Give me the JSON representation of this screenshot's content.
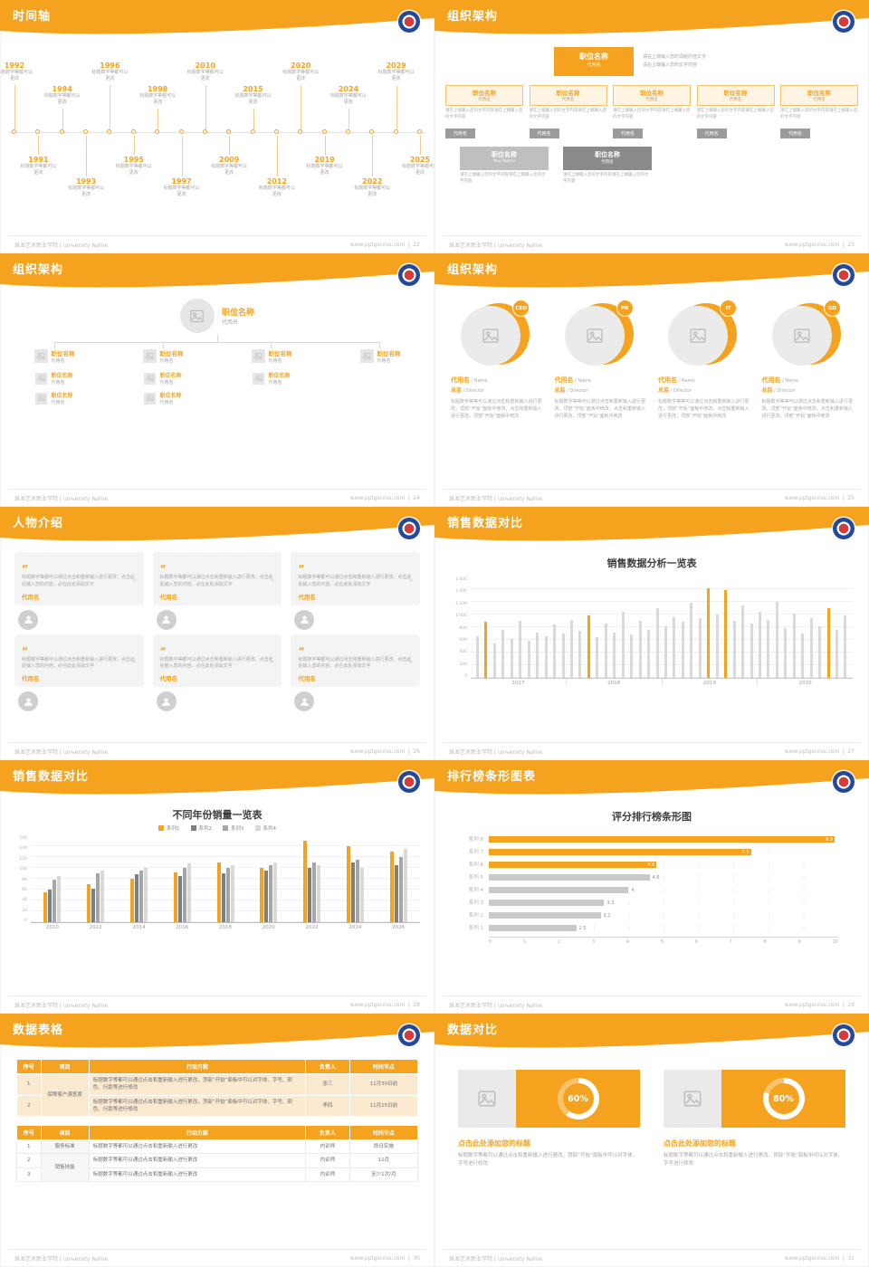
{
  "theme": {
    "orange": "#F5A31E",
    "logo_blue": "#24499B",
    "logo_red": "#D43B3B",
    "gray_text": "#999999",
    "bar_gray": "#D9D9D9"
  },
  "icons": {
    "logo": "school-emblem-icon",
    "image": "image-placeholder-icon",
    "person": "person-icon",
    "quote_open": "“",
    "quote_close": "”"
  },
  "footer": {
    "school": "珠海艺术职业学院 | university Name",
    "site": "www.pptgenius.com"
  },
  "slides": {
    "timeline": {
      "title": "时间轴",
      "page": "22",
      "top_years": [
        "1992",
        "1994",
        "1996",
        "1998",
        "2010",
        "2015",
        "2020",
        "2024",
        "2029"
      ],
      "bottom_years": [
        "1991",
        "1993",
        "1995",
        "1997",
        "2009",
        "2012",
        "2019",
        "2022",
        "2025"
      ],
      "caption": "标题数字等都可以更改"
    },
    "org_boxes": {
      "title": "组织架构",
      "page": "23",
      "main": {
        "title": "职位名称",
        "sub": "代用名"
      },
      "main_note1": "请在上端输入您的词组内容文字",
      "main_note2": "请在上端输入您的文字内容",
      "columns": [
        {
          "title": "职位名称",
          "sub": "代用名",
          "note": "请在上端输入您的文字内容请在上端输入您的文字内容",
          "tag": "代用名"
        },
        {
          "title": "职位名称",
          "sub": "代用名",
          "note": "请在上端输入您的文字内容请在上端输入您的文字内容",
          "tag": "代用名"
        },
        {
          "title": "职位名称",
          "sub": "代用名",
          "note": "请在上端输入您的文字内容请在上端输入您的文字内容",
          "tag": "代用名"
        },
        {
          "title": "职位名称",
          "sub": "代用名",
          "note": "请在上端输入您的文字内容请在上端输入您的文字内容",
          "tag": "代用名"
        },
        {
          "title": "职位名称",
          "sub": "代用名",
          "note": "请在上端输入您的文字内容请在上端输入您的文字内容",
          "tag": "代用名"
        }
      ],
      "bottom": [
        {
          "title": "职位名称",
          "sub": "Your Name",
          "note": "请在上端输入您的文字内容请在上端输入您的文字内容"
        },
        {
          "title": "职位名称",
          "sub": "代用名",
          "note": "请在上端输入您的文字内容请在上端输入您的文字内容"
        }
      ]
    },
    "org_tree": {
      "title": "组织架构",
      "page": "24",
      "root": {
        "title": "职位名称",
        "sub": "代用名"
      },
      "children": [
        {
          "title": "职位名称",
          "sub": "代用名"
        },
        {
          "title": "职位名称",
          "sub": "代用名"
        },
        {
          "title": "职位名称",
          "sub": "代用名"
        },
        {
          "title": "职位名称",
          "sub": "代用名"
        }
      ],
      "subitems": [
        [
          {
            "title": "职位名称",
            "sub": "代用名"
          },
          {
            "title": "职位名称",
            "sub": "代用名"
          }
        ],
        [
          {
            "title": "职位名称",
            "sub": "代用名"
          },
          {
            "title": "职位名称",
            "sub": "代用名"
          }
        ],
        [
          {
            "title": "职位名称",
            "sub": "代用名"
          }
        ],
        []
      ]
    },
    "org_circles": {
      "title": "组织架构",
      "page": "25",
      "members": [
        {
          "badge": "CEO",
          "name": "代用名",
          "name_en": "Name",
          "role": "总监",
          "role_en": "Director",
          "text": "标题数字等等可以通过点击和重新输入进行更改，顶部“开始”面板中修改，点击和重新输入进行更改，顶部“开始”面板中修改"
        },
        {
          "badge": "PR",
          "name": "代用名",
          "name_en": "Name",
          "role": "总监",
          "role_en": "Director",
          "text": "标题数字等等可以通过点击和重新输入进行更改，顶部“开始”面板中修改，点击和重新输入进行更改，顶部“开始”面板中修改"
        },
        {
          "badge": "IT",
          "name": "代用名",
          "name_en": "Name",
          "role": "总监",
          "role_en": "Director",
          "text": "标题数字等等可以通过点击和重新输入进行更改，顶部“开始”面板中修改，点击和重新输入进行更改，顶部“开始”面板中修改"
        },
        {
          "badge": "GD",
          "name": "代用名",
          "name_en": "Name",
          "role": "总监",
          "role_en": "Director",
          "text": "标题数字等等可以通过点击和重新输入进行更改，顶部“开始”面板中修改，点击和重新输入进行更改，顶部“开始”面板中修改"
        }
      ]
    },
    "people": {
      "title": "人物介绍",
      "page": "26",
      "cards": [
        {
          "text": "标题数字等都可以通过点击和重新输入进行更改，点击此处输入您的内容，必在此处添加文字",
          "name": "代用名"
        },
        {
          "text": "标题数字等都可以通过点击和重新输入进行更改，点击此处输入您的内容，必在此处添加文字",
          "name": "代用名"
        },
        {
          "text": "标题数字等都可以通过点击和重新输入进行更改，点击此处输入您的内容，必在此处添加文字",
          "name": "代用名"
        },
        {
          "text": "标题数字等都可以通过点击和重新输入进行更改，点击此处输入您的内容，必在此处添加文字",
          "name": "代用名"
        },
        {
          "text": "标题数字等都可以通过点击和重新输入进行更改，点击此处输入您的内容，必在此处添加文字",
          "name": "代用名"
        },
        {
          "text": "标题数字等都可以通过点击和重新输入进行更改，点击此处输入您的内容，必在此处添加文字",
          "name": "代用名"
        }
      ]
    },
    "sales1": {
      "title": "销售数据对比",
      "page": "27",
      "chart_title": "销售数据分析一览表"
    },
    "sales2": {
      "title": "销售数据对比",
      "page": "28",
      "chart_title": "不同年份销量一览表"
    },
    "rank": {
      "title": "排行榜条形图表",
      "page": "29",
      "chart_title": "评分排行榜条形图"
    },
    "tables": {
      "title": "数据表格",
      "page": "30",
      "headers": [
        "序号",
        "项目",
        "行动方案",
        "负责人",
        "时间节点"
      ],
      "table1": {
        "rows": [
          {
            "no": "1",
            "item": "保障客户满意度",
            "span": 2,
            "plan": "标题数字等都可以通过点击和重新输入进行更改，顶部“开始”面板中可以对字体、字号、颜色、行距等进行修改",
            "owner": "张三",
            "time": "11月30日前"
          },
          {
            "no": "2",
            "item": null,
            "plan": "标题数字等都可以通过点击和重新输入进行更改，顶部“开始”面板中可以对字体、字号、颜色、行距等进行修改",
            "owner": "李四",
            "time": "11月15日前"
          }
        ]
      },
      "table2": {
        "rows": [
          {
            "no": "1",
            "item": "服务标准",
            "plan": "标题数字等都可以通过点击和重新输入进行更改",
            "owner": "内训师",
            "time": "即日实施"
          },
          {
            "no": "2",
            "item": "销售技能",
            "span": 2,
            "plan": "标题数字等都可以通过点击和重新输入进行更改",
            "owner": "内训师",
            "time": "11月"
          },
          {
            "no": "3",
            "item": null,
            "plan": "标题数字等都可以通过点击和重新输入进行更改",
            "owner": "内训师",
            "time": "至少1次/月"
          }
        ]
      }
    },
    "compare": {
      "title": "数据对比",
      "page": "31",
      "panels": [
        {
          "percent": "60%",
          "value": 60,
          "heading": "点击此处添加您的标题",
          "text": "标题数字等都可以通过点击和重新输入进行更改，顶部“开始”面板中可以对字体、字号进行修改"
        },
        {
          "percent": "80%",
          "value": 80,
          "heading": "点击此处添加您的标题",
          "text": "标题数字等都可以通过点击和重新输入进行更改，顶部“开始”面板中可以对字体、字号进行修改"
        }
      ]
    }
  },
  "chart_data": [
    {
      "type": "bar",
      "title": "销售数据分析一览表",
      "x_groups": [
        "2017",
        "2018",
        "2019",
        "2020"
      ],
      "values": [
        660,
        880,
        540,
        760,
        620,
        900,
        580,
        720,
        660,
        840,
        700,
        920,
        750,
        980,
        640,
        860,
        720,
        1040,
        680,
        900,
        760,
        1100,
        820,
        960,
        880,
        1180,
        940,
        1420,
        1000,
        1380,
        900,
        1150,
        860,
        1050,
        920,
        1200,
        780,
        1020,
        700,
        950,
        820,
        1100,
        760,
        980
      ],
      "highlight_indices": [
        1,
        13,
        27,
        29,
        41
      ],
      "highlight_color": "#F5A31E",
      "bar_color": "#D9D9D9",
      "ylim": [
        0,
        1600
      ],
      "yticks": [
        "1,600",
        "1,400",
        "1,200",
        "1,000",
        "800",
        "600",
        "400",
        "200",
        "0"
      ]
    },
    {
      "type": "bar",
      "title": "不同年份销量一览表",
      "categories": [
        "2010",
        "2012",
        "2014",
        "2016",
        "2018",
        "2020",
        "2022",
        "2024",
        "2026"
      ],
      "series": [
        {
          "name": "系列1",
          "color": "#F5A31E",
          "values": [
            55,
            70,
            80,
            92,
            110,
            100,
            150,
            140,
            130
          ]
        },
        {
          "name": "系列2",
          "color": "#7F7F7F",
          "values": [
            60,
            62,
            88,
            85,
            90,
            95,
            100,
            110,
            105
          ]
        },
        {
          "name": "系列3",
          "color": "#A6A6A6",
          "values": [
            78,
            90,
            95,
            100,
            100,
            105,
            110,
            115,
            120
          ]
        },
        {
          "name": "系列4",
          "color": "#D9D9D9",
          "values": [
            85,
            95,
            100,
            108,
            105,
            110,
            105,
            100,
            135
          ]
        }
      ],
      "ylim": [
        0,
        160
      ],
      "ytick_step": 20
    },
    {
      "type": "bar",
      "orientation": "horizontal",
      "title": "评分排行榜条形图",
      "categories": [
        "系列 8",
        "系列 7",
        "系列 6",
        "系列 5",
        "系列 4",
        "系列 3",
        "系列 2",
        "系列 1"
      ],
      "values": [
        9.9,
        7.5,
        4.8,
        4.6,
        4,
        3.3,
        3.2,
        2.5
      ],
      "highlight_count": 3,
      "highlight_color": "#F5A31E",
      "bar_color": "#C9C9C9",
      "xlim": [
        0,
        10
      ],
      "xticks": [
        0,
        1,
        2,
        3,
        4,
        5,
        6,
        7,
        8,
        9,
        10
      ]
    },
    {
      "type": "donut",
      "title": "数据对比",
      "percents": [
        60,
        80
      ]
    }
  ]
}
